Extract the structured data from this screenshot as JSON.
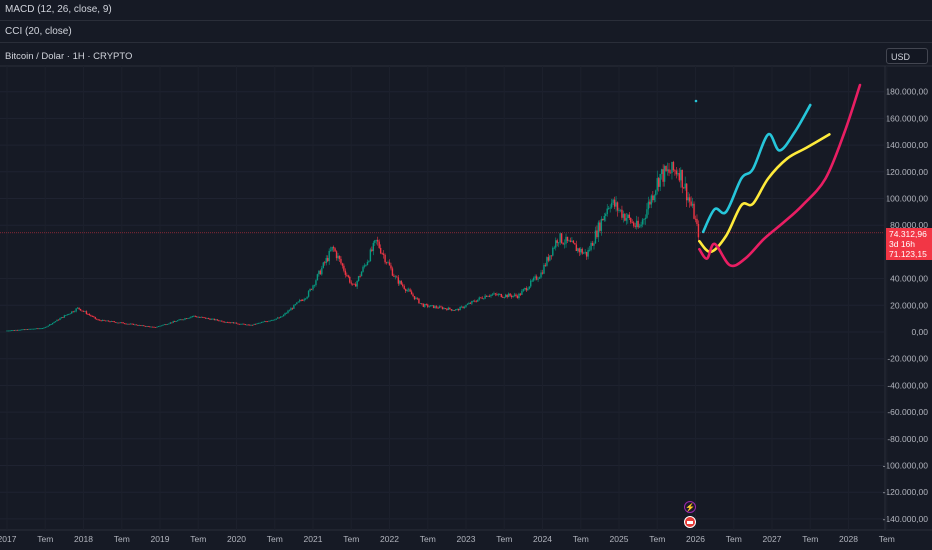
{
  "indicators": {
    "macd": "MACD (12, 26, close, 9)",
    "cci": "CCI (20, close)"
  },
  "chart": {
    "title": "Bitcoin / Dolar · 1H · CRYPTO",
    "currency": "USD"
  },
  "price_tag": {
    "price": "74.312,96",
    "countdown": "3d 16h",
    "secondary": "71.123,15"
  },
  "colors": {
    "background": "#161a25",
    "up_candle": "#089981",
    "down_candle": "#f23645",
    "projection_cyan": "#26c6da",
    "projection_yellow": "#ffeb3b",
    "projection_pink": "#e91e63"
  },
  "chart_data": {
    "type": "line",
    "y_axis_ticks": [
      "180.000,00",
      "160.000,00",
      "140.000,00",
      "120.000,00",
      "100.000,00",
      "80.000,00",
      "40.000,00",
      "20.000,00",
      "0,00",
      "-20.000,00",
      "-40.000,00",
      "-60.000,00",
      "-80.000,00",
      "-100.000,00",
      "-120.000,00",
      "-140.000,00"
    ],
    "x_axis_ticks": [
      "2017",
      "Tem",
      "2018",
      "Tem",
      "2019",
      "Tem",
      "2020",
      "Tem",
      "2021",
      "Tem",
      "2022",
      "Tem",
      "2023",
      "Tem",
      "2024",
      "Tem",
      "2025",
      "Tem",
      "2026",
      "Tem",
      "2027",
      "Tem",
      "2028",
      "Tem"
    ],
    "price_history": [
      {
        "x": 2017.0,
        "y": 1000
      },
      {
        "x": 2017.5,
        "y": 3000
      },
      {
        "x": 2017.95,
        "y": 18000
      },
      {
        "x": 2018.2,
        "y": 9000
      },
      {
        "x": 2018.5,
        "y": 7000
      },
      {
        "x": 2018.95,
        "y": 3500
      },
      {
        "x": 2019.45,
        "y": 12000
      },
      {
        "x": 2019.9,
        "y": 7500
      },
      {
        "x": 2020.2,
        "y": 5000
      },
      {
        "x": 2020.6,
        "y": 11000
      },
      {
        "x": 2020.95,
        "y": 28000
      },
      {
        "x": 2021.28,
        "y": 63000
      },
      {
        "x": 2021.55,
        "y": 33000
      },
      {
        "x": 2021.85,
        "y": 68000
      },
      {
        "x": 2022.1,
        "y": 40000
      },
      {
        "x": 2022.45,
        "y": 20000
      },
      {
        "x": 2022.9,
        "y": 16500
      },
      {
        "x": 2023.3,
        "y": 28000
      },
      {
        "x": 2023.7,
        "y": 27000
      },
      {
        "x": 2024.0,
        "y": 44000
      },
      {
        "x": 2024.22,
        "y": 71000
      },
      {
        "x": 2024.6,
        "y": 58000
      },
      {
        "x": 2024.9,
        "y": 98000
      },
      {
        "x": 2025.28,
        "y": 77000
      },
      {
        "x": 2025.55,
        "y": 117000
      },
      {
        "x": 2025.8,
        "y": 122000
      },
      {
        "x": 2026.0,
        "y": 88000
      },
      {
        "x": 2026.05,
        "y": 74313
      }
    ],
    "series": [
      {
        "values": [
          {
            "x": 2026.1,
            "y": 75000
          },
          {
            "x": 2026.25,
            "y": 92000
          },
          {
            "x": 2026.4,
            "y": 90000
          },
          {
            "x": 2026.6,
            "y": 115000
          },
          {
            "x": 2026.75,
            "y": 122000
          },
          {
            "x": 2026.95,
            "y": 148000
          },
          {
            "x": 2027.1,
            "y": 136000
          },
          {
            "x": 2027.3,
            "y": 150000
          },
          {
            "x": 2027.5,
            "y": 170000
          }
        ]
      },
      {
        "values": [
          {
            "x": 2026.05,
            "y": 68000
          },
          {
            "x": 2026.2,
            "y": 60000
          },
          {
            "x": 2026.4,
            "y": 72000
          },
          {
            "x": 2026.6,
            "y": 95000
          },
          {
            "x": 2026.75,
            "y": 96000
          },
          {
            "x": 2026.95,
            "y": 115000
          },
          {
            "x": 2027.2,
            "y": 130000
          },
          {
            "x": 2027.45,
            "y": 138000
          },
          {
            "x": 2027.75,
            "y": 148000
          }
        ]
      },
      {
        "values": [
          {
            "x": 2026.05,
            "y": 62000
          },
          {
            "x": 2026.15,
            "y": 55000
          },
          {
            "x": 2026.25,
            "y": 66000
          },
          {
            "x": 2026.45,
            "y": 50000
          },
          {
            "x": 2026.65,
            "y": 55000
          },
          {
            "x": 2026.9,
            "y": 70000
          },
          {
            "x": 2027.15,
            "y": 82000
          },
          {
            "x": 2027.4,
            "y": 95000
          },
          {
            "x": 2027.7,
            "y": 115000
          },
          {
            "x": 2027.95,
            "y": 150000
          },
          {
            "x": 2028.15,
            "y": 185000
          }
        ]
      }
    ]
  }
}
